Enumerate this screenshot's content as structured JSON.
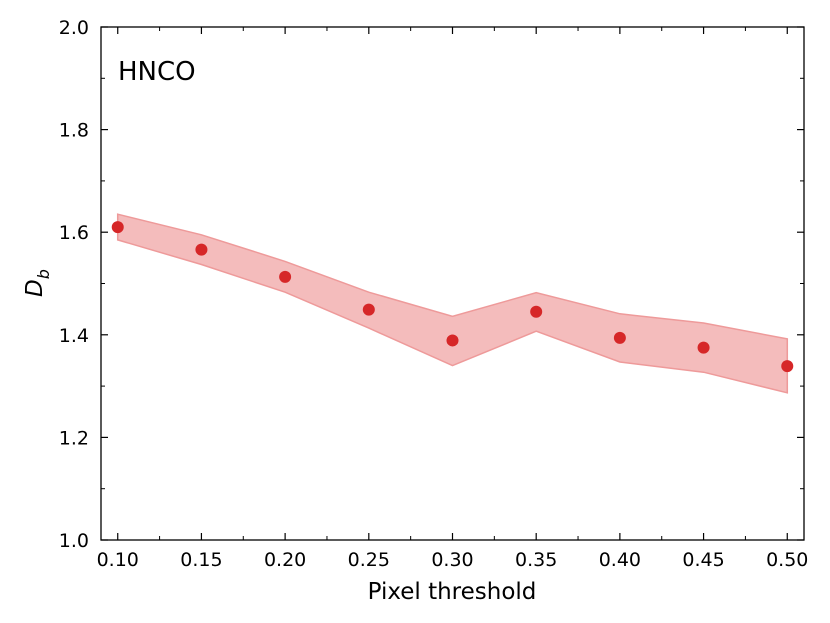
{
  "chart_data": {
    "type": "scatter",
    "title": "",
    "annotation": "HNCO",
    "xlabel": "Pixel threshold",
    "ylabel_main": "D",
    "ylabel_sub": "b",
    "xlim": [
      0.09,
      0.51
    ],
    "ylim": [
      1.0,
      2.0
    ],
    "xticks": [
      0.1,
      0.15,
      0.2,
      0.25,
      0.3,
      0.35,
      0.4,
      0.45,
      0.5
    ],
    "xtick_labels": [
      "0.10",
      "0.15",
      "0.20",
      "0.25",
      "0.30",
      "0.35",
      "0.40",
      "0.45",
      "0.50"
    ],
    "yticks": [
      1.0,
      1.2,
      1.4,
      1.6,
      1.8,
      2.0
    ],
    "ytick_labels": [
      "1.0",
      "1.2",
      "1.4",
      "1.6",
      "1.8",
      "2.0"
    ],
    "grid": false,
    "series": [
      {
        "name": "HNCO",
        "color": "#d62728",
        "x": [
          0.1,
          0.15,
          0.2,
          0.25,
          0.3,
          0.35,
          0.4,
          0.45,
          0.5
        ],
        "y": [
          1.61,
          1.566,
          1.513,
          1.449,
          1.389,
          1.445,
          1.394,
          1.375,
          1.339
        ],
        "band_upper": [
          1.635,
          1.595,
          1.543,
          1.483,
          1.436,
          1.482,
          1.441,
          1.423,
          1.392
        ],
        "band_lower": [
          1.585,
          1.537,
          1.483,
          1.413,
          1.34,
          1.407,
          1.347,
          1.327,
          1.287
        ],
        "band_fill": "#f4bcbc",
        "band_edge": "#ee9a9a"
      }
    ]
  }
}
